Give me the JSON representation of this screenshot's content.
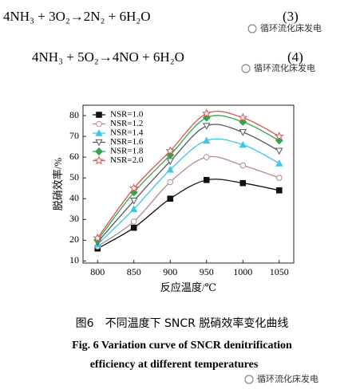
{
  "equations": [
    {
      "text": "4NH₃ + 3O₂→2N₂ + 6H₂O",
      "number": "(3)"
    },
    {
      "text": "4NH₃ + 5O₂→4NO + 6H₂O",
      "number": "(4)"
    }
  ],
  "watermark": "循环流化床发电",
  "chart_data": {
    "type": "line",
    "x_label": "反应温度/℃",
    "y_label": "脱硝效率/%",
    "x": [
      800,
      850,
      900,
      950,
      1000,
      1050
    ],
    "xlim": [
      780,
      1070
    ],
    "xticks": [
      800,
      850,
      900,
      950,
      1000,
      1050
    ],
    "ylim": [
      9,
      85
    ],
    "yticks": [
      10,
      20,
      30,
      40,
      50,
      60,
      70,
      80
    ],
    "legend": "upper-left",
    "series": [
      {
        "name": "NSR=1.0",
        "color": "#111111",
        "marker": "square",
        "values": [
          16,
          26,
          40,
          49,
          47.5,
          44
        ]
      },
      {
        "name": "NSR=1.2",
        "color": "#b08c8c",
        "marker": "circle-open",
        "values": [
          17,
          29,
          48,
          60,
          56,
          50
        ]
      },
      {
        "name": "NSR=1.4",
        "color": "#3ec6e8",
        "marker": "triangle-up",
        "values": [
          18,
          35,
          54,
          68,
          66,
          57
        ]
      },
      {
        "name": "NSR=1.6",
        "color": "#555566",
        "marker": "triangle-down-open",
        "values": [
          19,
          39,
          58,
          75,
          72,
          63
        ]
      },
      {
        "name": "NSR=1.8",
        "color": "#2fa84a",
        "marker": "diamond",
        "values": [
          20,
          43,
          61,
          79,
          77,
          68
        ]
      },
      {
        "name": "NSR=2.0",
        "color": "#d9534f",
        "marker": "star-open",
        "values": [
          21,
          45,
          63,
          81,
          79,
          70
        ]
      }
    ]
  },
  "caption": {
    "cn": "图6　不同温度下 SNCR 脱硝效率变化曲线",
    "en_1": "Fig. 6 Variation curve of SNCR denitrification",
    "en_2": "efficiency at different temperatures"
  }
}
